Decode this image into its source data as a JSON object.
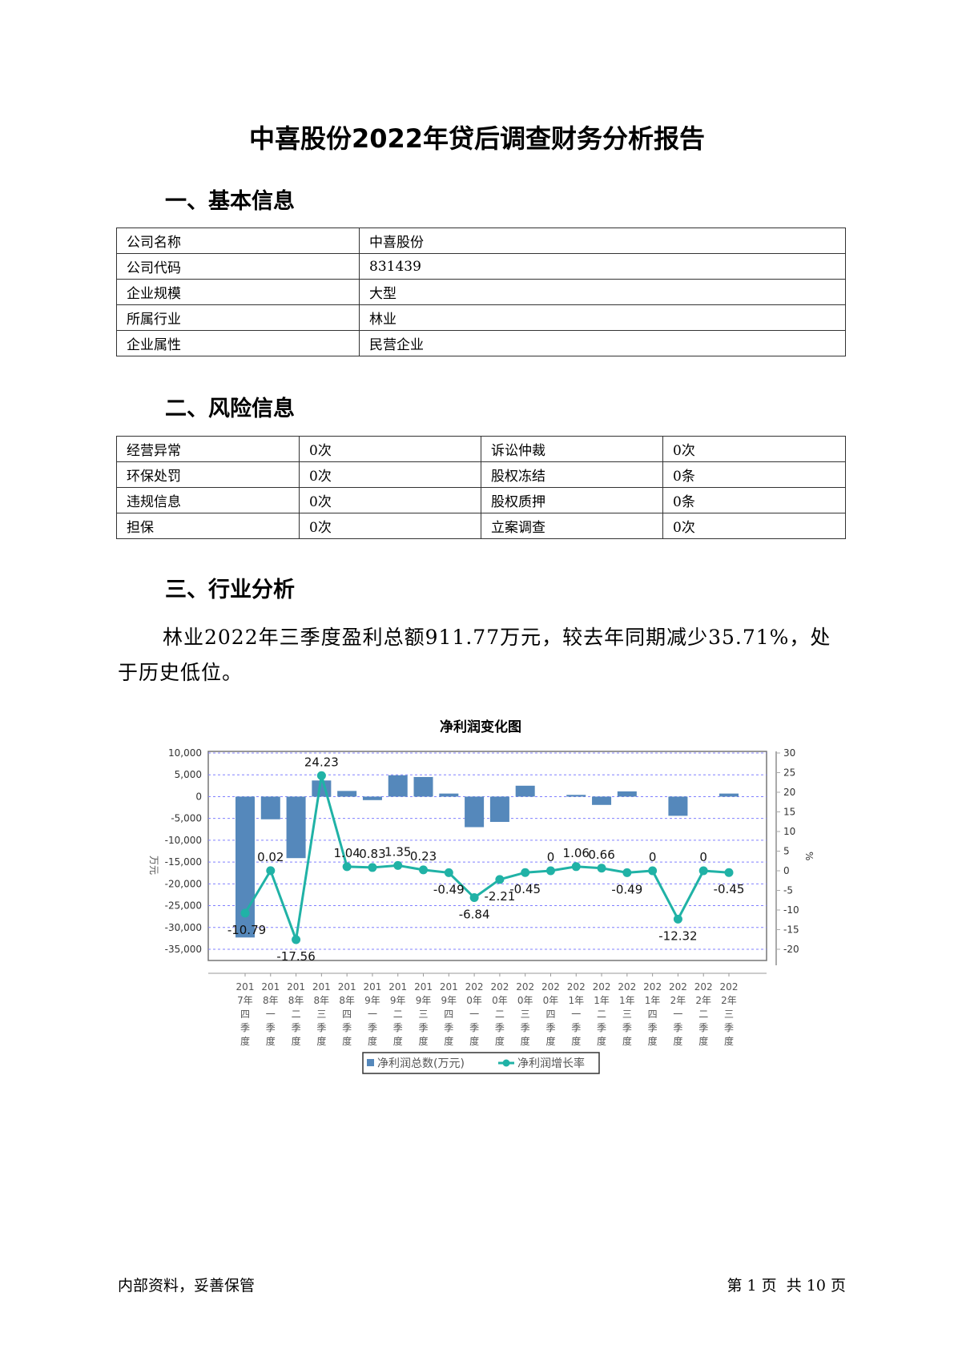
{
  "title": "中喜股份2022年贷后调查财务分析报告",
  "sections": {
    "basic": {
      "heading": "一、基本信息",
      "rows": [
        {
          "label": "公司名称",
          "value": "中喜股份"
        },
        {
          "label": "公司代码",
          "value": "831439"
        },
        {
          "label": "企业规模",
          "value": "大型"
        },
        {
          "label": "所属行业",
          "value": "林业"
        },
        {
          "label": "企业属性",
          "value": "民营企业"
        }
      ]
    },
    "risk": {
      "heading": "二、风险信息",
      "rows": [
        {
          "l1": "经营异常",
          "v1": "0次",
          "l2": "诉讼仲裁",
          "v2": "0次"
        },
        {
          "l1": "环保处罚",
          "v1": "0次",
          "l2": "股权冻结",
          "v2": "0条"
        },
        {
          "l1": "违规信息",
          "v1": "0次",
          "l2": "股权质押",
          "v2": "0条"
        },
        {
          "l1": "担保",
          "v1": "0次",
          "l2": "立案调查",
          "v2": "0次"
        }
      ]
    },
    "industry": {
      "heading": "三、行业分析",
      "paragraph": "林业2022年三季度盈利总额911.77万元，较去年同期减少35.71%，处于历史低位。"
    }
  },
  "chart_data": {
    "type": "bar+line",
    "title": "净利润变化图",
    "categories": [
      "2017年四季度",
      "2018年一季度",
      "2018年二季度",
      "2018年三季度",
      "2018年四季度",
      "2019年一季度",
      "2019年二季度",
      "2019年三季度",
      "2019年四季度",
      "2020年一季度",
      "2020年二季度",
      "2020年三季度",
      "2020年四季度",
      "2021年一季度",
      "2021年二季度",
      "2021年三季度",
      "2021年四季度",
      "2022年一季度",
      "2022年二季度",
      "2022年三季度"
    ],
    "series": [
      {
        "name": "净利润总数(万元)",
        "type": "bar",
        "axis": "left",
        "color": "#5588bb",
        "values": [
          -32300,
          -5200,
          -14100,
          3700,
          1300,
          -800,
          4900,
          4500,
          700,
          -7000,
          -5800,
          2500,
          0,
          400,
          -1900,
          1200,
          0,
          -4400,
          0,
          700
        ]
      },
      {
        "name": "净利润增长率",
        "type": "line",
        "axis": "right",
        "color": "#20b2a6",
        "values": [
          -10.79,
          0.02,
          -17.56,
          24.23,
          1.04,
          0.83,
          1.35,
          0.23,
          -0.49,
          -6.84,
          -2.21,
          -0.45,
          0,
          1.06,
          0.66,
          -0.49,
          0,
          -12.32,
          0,
          -0.45
        ]
      }
    ],
    "ylabel": "万元",
    "y2label": "%",
    "ylim": [
      -35000,
      10000
    ],
    "yticks": [
      "10,000",
      "5,000",
      "0",
      "-5,000",
      "-10,000",
      "-15,000",
      "-20,000",
      "-25,000",
      "-30,000",
      "-35,000"
    ],
    "y2lim": [
      -20,
      30
    ],
    "y2ticks": [
      "30",
      "25",
      "20",
      "15",
      "10",
      "5",
      "0",
      "-5",
      "-10",
      "-15",
      "-20"
    ],
    "grid": true,
    "legend": "bottom"
  },
  "footer": {
    "left": "内部资料，妥善保管",
    "right": "第 1 页  共 10 页"
  }
}
